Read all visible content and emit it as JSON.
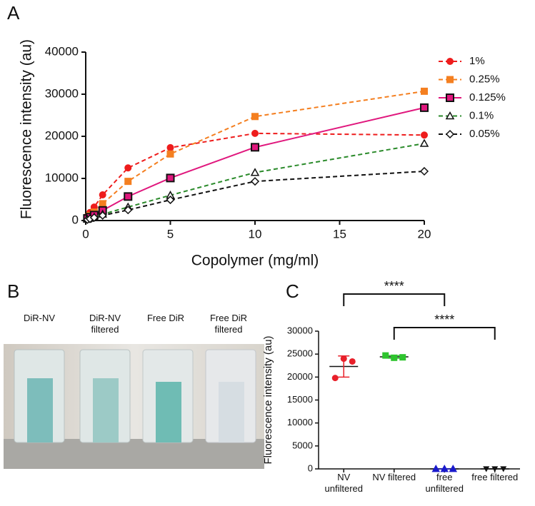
{
  "chart_data": [
    {
      "panel": "A",
      "type": "line",
      "x_label": "Copolymer (mg/ml)",
      "y_label": "Fluorescence intensity (au)",
      "x": [
        0.1,
        0.25,
        0.5,
        1,
        2.5,
        5,
        10,
        20
      ],
      "xlim": [
        0,
        20
      ],
      "xticks": [
        0,
        5,
        10,
        15,
        20
      ],
      "ylim": [
        0,
        40000
      ],
      "yticks": [
        0,
        10000,
        20000,
        30000,
        40000
      ],
      "series": [
        {
          "name": "1%",
          "color": "#ee1c1c",
          "dashed": true,
          "marker": "circle",
          "values": [
            1000,
            1900,
            3200,
            6100,
            12500,
            17300,
            20700,
            20300
          ]
        },
        {
          "name": "0.25%",
          "color": "#f47f20",
          "dashed": true,
          "marker": "square",
          "values": [
            700,
            1200,
            2000,
            4000,
            9300,
            15800,
            24700,
            30700
          ]
        },
        {
          "name": "0.125%",
          "color": "#e0177d",
          "dashed": false,
          "marker": "square-outline",
          "values": [
            500,
            800,
            1300,
            2400,
            5700,
            10100,
            17400,
            26800
          ]
        },
        {
          "name": "0.1%",
          "color": "#2a8a2a",
          "dashed": true,
          "marker": "triangle",
          "values": [
            300,
            500,
            800,
            1500,
            3200,
            6000,
            11400,
            18300
          ]
        },
        {
          "name": "0.05%",
          "color": "#111111",
          "dashed": true,
          "marker": "diamond",
          "values": [
            200,
            400,
            700,
            1200,
            2500,
            4900,
            9300,
            11700
          ]
        }
      ]
    },
    {
      "panel": "C",
      "type": "strip",
      "y_label": "Fluorescence intensity (au)",
      "categories": [
        "NV unfiltered",
        "NV filtered",
        "free unfiltered",
        "free filtered"
      ],
      "values": [
        [
          19800,
          24000,
          23400
        ],
        [
          24700,
          24200,
          24300
        ],
        [
          0,
          0,
          0
        ],
        [
          0,
          0,
          0
        ]
      ],
      "means": [
        22300,
        24400,
        0,
        0
      ],
      "sds": [
        2300,
        300,
        0,
        0
      ],
      "colors": [
        "#e8202a",
        "#2ec42e",
        "#1a1acc",
        "#111111"
      ],
      "markers": [
        "circle",
        "square",
        "triangle",
        "triangle-down"
      ],
      "ylim": [
        0,
        30000
      ],
      "yticks": [
        0,
        5000,
        10000,
        15000,
        20000,
        25000,
        30000
      ],
      "comparisons": [
        {
          "label": "****",
          "between": [
            "NV unfiltered",
            "free unfiltered"
          ]
        },
        {
          "label": "****",
          "between": [
            "NV filtered",
            "free filtered"
          ]
        }
      ]
    }
  ],
  "photo": {
    "panel": "B",
    "labels": [
      "DiR-NV",
      "DiR-NV filtered",
      "Free DiR",
      "Free DiR filtered"
    ]
  }
}
